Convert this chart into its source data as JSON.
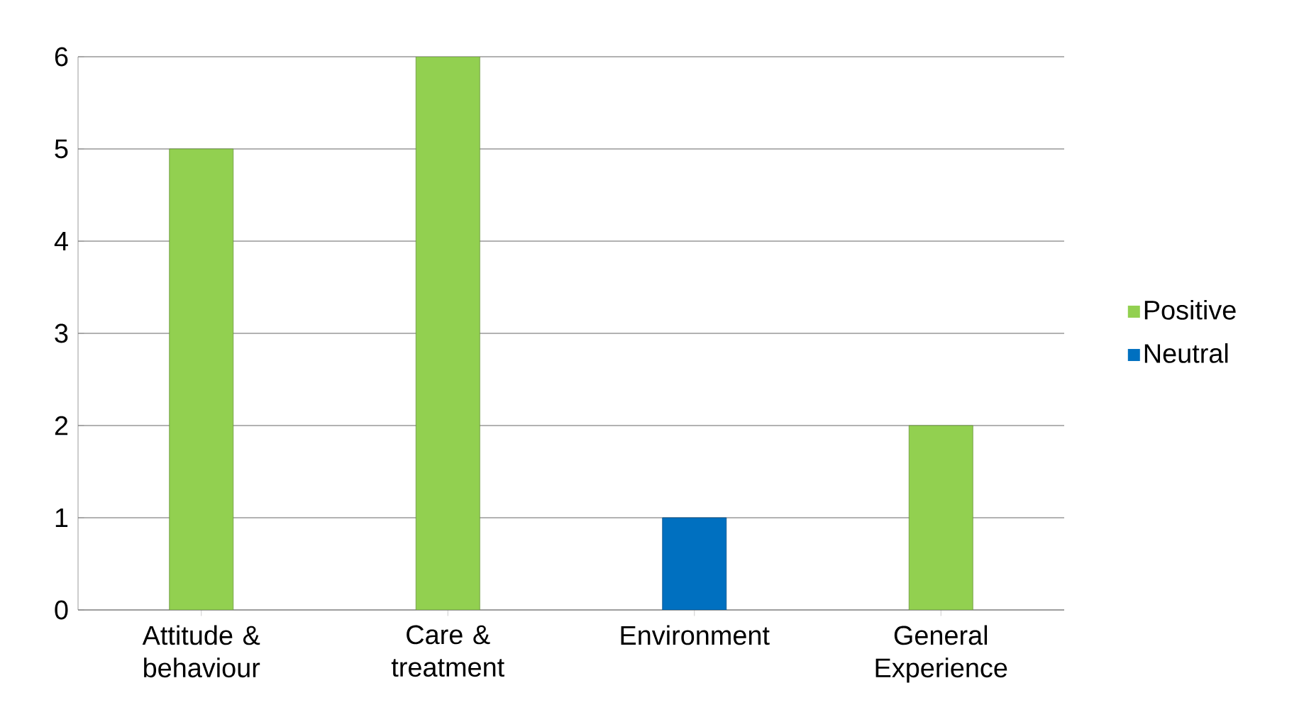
{
  "chart_data": {
    "type": "bar",
    "categories": [
      "Attitude & behaviour",
      "Care & treatment",
      "Environment",
      "General Experience"
    ],
    "series": [
      {
        "name": "Positive",
        "color": "#92d050",
        "values": [
          5,
          6,
          null,
          2
        ]
      },
      {
        "name": "Neutral",
        "color": "#0070c0",
        "values": [
          null,
          null,
          1,
          null
        ]
      }
    ],
    "ylim": [
      0,
      6
    ],
    "yticks": [
      0,
      1,
      2,
      3,
      4,
      5,
      6
    ],
    "grid": "y",
    "legend": "right"
  }
}
